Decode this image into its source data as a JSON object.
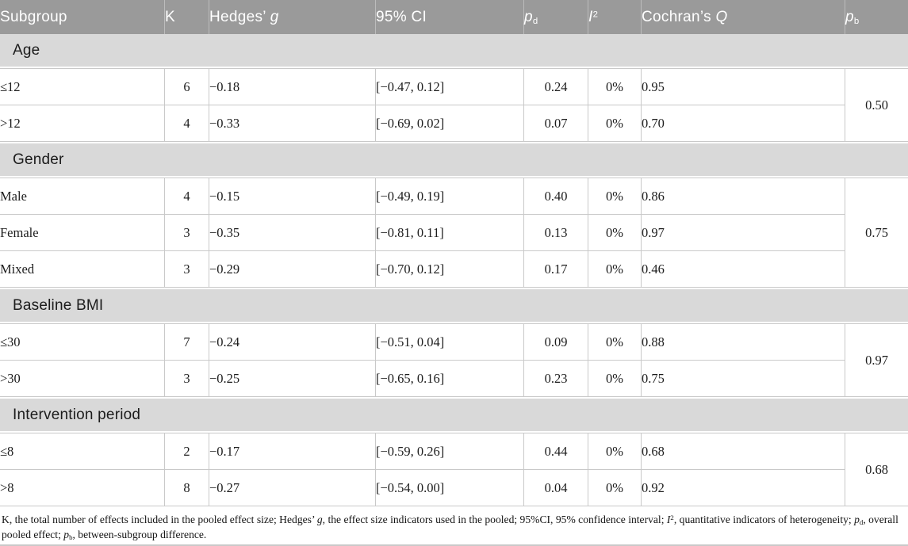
{
  "colors": {
    "header_bg": "#9a9a9a",
    "header_text": "#ffffff",
    "header_divider": "#bcbcbc",
    "section_bg": "#d9d9d9",
    "grid_line": "#c9c9c9",
    "body_text": "#1c1c1c"
  },
  "table": {
    "headers": {
      "subgroup": [
        {
          "t": "Subgroup"
        }
      ],
      "k": [
        {
          "t": "K"
        }
      ],
      "g": [
        {
          "t": "Hedges’ "
        },
        {
          "t": "g",
          "s": "i"
        }
      ],
      "ci": [
        {
          "t": "95% CI"
        }
      ],
      "pd": [
        {
          "t": "p",
          "s": "i"
        },
        {
          "t": "d",
          "s": "sub"
        }
      ],
      "i2": [
        {
          "t": "I",
          "s": "i"
        },
        {
          "t": "2",
          "s": "sup"
        }
      ],
      "q": [
        {
          "t": "Cochran’s "
        },
        {
          "t": "Q",
          "s": "i"
        }
      ],
      "pb": [
        {
          "t": "p",
          "s": "i"
        },
        {
          "t": "b",
          "s": "sub"
        }
      ]
    },
    "sections": [
      {
        "label": "Age",
        "pb": "0.50",
        "rows": [
          {
            "subgroup": "≤12",
            "k": "6",
            "g": "−0.18",
            "ci": "[−0.47, 0.12]",
            "pd": "0.24",
            "i2": "0%",
            "q": "0.95"
          },
          {
            "subgroup": ">12",
            "k": "4",
            "g": "−0.33",
            "ci": "[−0.69, 0.02]",
            "pd": "0.07",
            "i2": "0%",
            "q": "0.70"
          }
        ]
      },
      {
        "label": "Gender",
        "pb": "0.75",
        "rows": [
          {
            "subgroup": "Male",
            "k": "4",
            "g": "−0.15",
            "ci": "[−0.49, 0.19]",
            "pd": "0.40",
            "i2": "0%",
            "q": "0.86"
          },
          {
            "subgroup": "Female",
            "k": "3",
            "g": "−0.35",
            "ci": "[−0.81, 0.11]",
            "pd": "0.13",
            "i2": "0%",
            "q": "0.97"
          },
          {
            "subgroup": "Mixed",
            "k": "3",
            "g": "−0.29",
            "ci": "[−0.70, 0.12]",
            "pd": "0.17",
            "i2": "0%",
            "q": "0.46"
          }
        ]
      },
      {
        "label": "Baseline BMI",
        "pb": "0.97",
        "rows": [
          {
            "subgroup": "≤30",
            "k": "7",
            "g": "−0.24",
            "ci": "[−0.51, 0.04]",
            "pd": "0.09",
            "i2": "0%",
            "q": "0.88"
          },
          {
            "subgroup": ">30",
            "k": "3",
            "g": "−0.25",
            "ci": "[−0.65, 0.16]",
            "pd": "0.23",
            "i2": "0%",
            "q": "0.75"
          }
        ]
      },
      {
        "label": "Intervention period",
        "pb": "0.68",
        "rows": [
          {
            "subgroup": "≤8",
            "k": "2",
            "g": "−0.17",
            "ci": "[−0.59, 0.26]",
            "pd": "0.44",
            "i2": "0%",
            "q": "0.68"
          },
          {
            "subgroup": ">8",
            "k": "8",
            "g": "−0.27",
            "ci": "[−0.54, 0.00]",
            "pd": "0.04",
            "i2": "0%",
            "q": "0.92"
          }
        ]
      }
    ]
  },
  "footnote": [
    {
      "t": "K, the total number of effects included in the pooled effect size; Hedges’ "
    },
    {
      "t": "g",
      "s": "i"
    },
    {
      "t": ", the effect size indicators used in the pooled; 95%CI, 95% confidence interval; "
    },
    {
      "t": "I",
      "s": "i"
    },
    {
      "t": "2",
      "s": "sup"
    },
    {
      "t": ", quantitative indicators of heterogeneity; "
    },
    {
      "t": "p",
      "s": "i"
    },
    {
      "t": "d",
      "s": "sub"
    },
    {
      "t": ", overall pooled effect; "
    },
    {
      "t": "p",
      "s": "i"
    },
    {
      "t": "b",
      "s": "sub"
    },
    {
      "t": ", between-subgroup difference."
    }
  ]
}
